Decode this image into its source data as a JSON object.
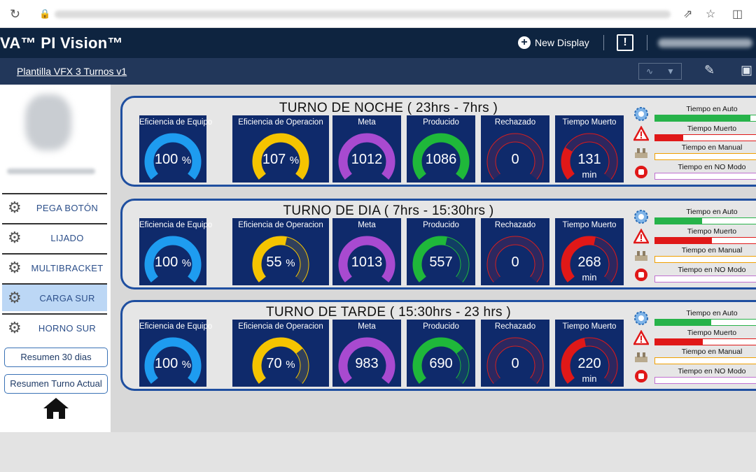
{
  "app": {
    "brand": "VA™ PI Vision™",
    "new_display_label": "New Display",
    "display_name": "Plantilla VFX 3 Turnos v1"
  },
  "icons": {
    "reload": "reload-icon",
    "lock": "lock-icon",
    "share": "share-icon",
    "star": "star-icon",
    "sidepanel": "sidepanel-icon",
    "new_display": "plus-circle-icon",
    "alert": "exclamation-icon",
    "trend": "trend-icon",
    "dropdown": "caret-down-icon",
    "pencil": "pencil-icon",
    "save": "save-icon",
    "home": "home-icon"
  },
  "sidebar": {
    "nav": [
      {
        "label": "PEGA BOTÓN",
        "icon": "robot-arm-icon",
        "active": false
      },
      {
        "label": "LIJADO",
        "icon": "robot-arm-icon",
        "active": false
      },
      {
        "label": "MULTIBRACKET",
        "icon": "robot-arm-icon",
        "active": false
      },
      {
        "label": "CARGA SUR",
        "icon": "robot-arm-icon",
        "active": true
      },
      {
        "label": "HORNO SUR",
        "icon": "robot-arm-icon",
        "active": false
      }
    ],
    "buttons": [
      {
        "label": "Resumen 30 dias"
      },
      {
        "label": "Resumen Turno Actual"
      }
    ]
  },
  "colors": {
    "tile_bg": "#0f2a6b",
    "panel_border": "#1f4fa0",
    "eq": "#1e9cf0",
    "op": "#f5c400",
    "meta": "#a84ad0",
    "prod": "#1fb83a",
    "rech": "#d42020",
    "tm": "#e01818",
    "auto": "#27b34a",
    "muerto": "#e01818",
    "manual": "#f0a000",
    "nomodo": "#c070d0"
  },
  "shifts": [
    {
      "title": "TURNO DE NOCHE ( 23hrs - 7hrs )",
      "tiles": [
        {
          "label": "Eficiencia de Equipo",
          "value": "100",
          "unit": "%",
          "fraction": 1.0,
          "color": "#1e9cf0"
        },
        {
          "label": "Eficiencia de Operacion",
          "value": "107",
          "unit": "%",
          "fraction": 1.0,
          "color": "#f5c400"
        },
        {
          "label": "Meta",
          "value": "1012",
          "unit": "",
          "fraction": 1.0,
          "color": "#a84ad0"
        },
        {
          "label": "Producido",
          "value": "1086",
          "unit": "",
          "fraction": 1.0,
          "color": "#1fb83a"
        },
        {
          "label": "Rechazado",
          "value": "0",
          "unit": "",
          "fraction": 0.0,
          "color": "#d42020"
        },
        {
          "label": "Tiempo Muerto",
          "value": "131",
          "unit": "min",
          "fraction": 0.27,
          "color": "#e01818"
        }
      ],
      "status": [
        {
          "label": "Tiempo en Auto",
          "icon": "gear-icon",
          "fraction": 0.92,
          "color": "#27b34a"
        },
        {
          "label": "Tiempo Muerto",
          "icon": "warning-icon",
          "fraction": 0.27,
          "color": "#e01818"
        },
        {
          "label": "Tiempo en Manual",
          "icon": "manual-icon",
          "fraction": 0.0,
          "color": "#f0a000"
        },
        {
          "label": "Tiempo en NO Modo",
          "icon": "stop-icon",
          "fraction": 0.0,
          "color": "#c070d0"
        }
      ]
    },
    {
      "title": "TURNO DE DIA ( 7hrs - 15:30hrs )",
      "tiles": [
        {
          "label": "Eficiencia de Equipo",
          "value": "100",
          "unit": "%",
          "fraction": 1.0,
          "color": "#1e9cf0"
        },
        {
          "label": "Eficiencia de Operacion",
          "value": "55",
          "unit": "%",
          "fraction": 0.55,
          "color": "#f5c400"
        },
        {
          "label": "Meta",
          "value": "1013",
          "unit": "",
          "fraction": 1.0,
          "color": "#a84ad0"
        },
        {
          "label": "Producido",
          "value": "557",
          "unit": "",
          "fraction": 0.55,
          "color": "#1fb83a"
        },
        {
          "label": "Rechazado",
          "value": "0",
          "unit": "",
          "fraction": 0.0,
          "color": "#d42020"
        },
        {
          "label": "Tiempo Muerto",
          "value": "268",
          "unit": "min",
          "fraction": 0.55,
          "color": "#e01818"
        }
      ],
      "status": [
        {
          "label": "Tiempo en Auto",
          "icon": "gear-icon",
          "fraction": 0.45,
          "color": "#27b34a"
        },
        {
          "label": "Tiempo Muerto",
          "icon": "warning-icon",
          "fraction": 0.55,
          "color": "#e01818"
        },
        {
          "label": "Tiempo en Manual",
          "icon": "manual-icon",
          "fraction": 0.0,
          "color": "#f0a000"
        },
        {
          "label": "Tiempo en NO Modo",
          "icon": "stop-icon",
          "fraction": 0.0,
          "color": "#c070d0"
        }
      ]
    },
    {
      "title": "TURNO DE TARDE ( 15:30hrs - 23 hrs )",
      "tiles": [
        {
          "label": "Eficiencia de Equipo",
          "value": "100",
          "unit": "%",
          "fraction": 1.0,
          "color": "#1e9cf0"
        },
        {
          "label": "Eficiencia de Operacion",
          "value": "70",
          "unit": "%",
          "fraction": 0.7,
          "color": "#f5c400"
        },
        {
          "label": "Meta",
          "value": "983",
          "unit": "",
          "fraction": 1.0,
          "color": "#a84ad0"
        },
        {
          "label": "Producido",
          "value": "690",
          "unit": "",
          "fraction": 0.7,
          "color": "#1fb83a"
        },
        {
          "label": "Rechazado",
          "value": "0",
          "unit": "",
          "fraction": 0.0,
          "color": "#d42020"
        },
        {
          "label": "Tiempo Muerto",
          "value": "220",
          "unit": "min",
          "fraction": 0.46,
          "color": "#e01818"
        }
      ],
      "status": [
        {
          "label": "Tiempo en Auto",
          "icon": "gear-icon",
          "fraction": 0.54,
          "color": "#27b34a"
        },
        {
          "label": "Tiempo Muerto",
          "icon": "warning-icon",
          "fraction": 0.46,
          "color": "#e01818"
        },
        {
          "label": "Tiempo en Manual",
          "icon": "manual-icon",
          "fraction": 0.0,
          "color": "#f0a000"
        },
        {
          "label": "Tiempo en NO Modo",
          "icon": "stop-icon",
          "fraction": 0.0,
          "color": "#c070d0"
        }
      ]
    }
  ]
}
